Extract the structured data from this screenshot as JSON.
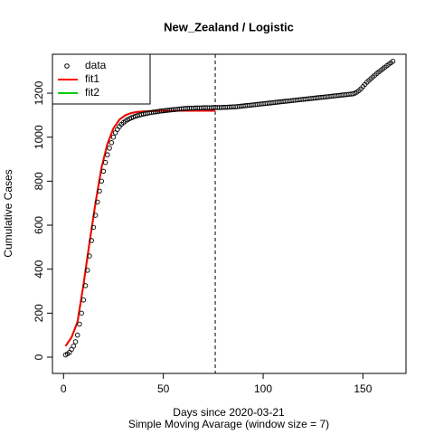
{
  "chart_data": {
    "type": "scatter",
    "title": "New_Zealand / Logistic",
    "xlabel": "Days since 2020-03-21",
    "subtitle": "Simple Moving Avarage (window size = 7)",
    "ylabel": "Cumulative Cases",
    "xlim": [
      -5.56,
      171.56
    ],
    "ylim": [
      -74,
      1377
    ],
    "xticks": [
      0,
      50,
      100,
      150
    ],
    "yticks": [
      0,
      200,
      400,
      600,
      800,
      1000,
      1200
    ],
    "vline": 76,
    "legend": "top-left",
    "series": [
      {
        "name": "data",
        "type": "scatter",
        "color": "#000000",
        "x": [
          1,
          2,
          3,
          4,
          5,
          6,
          7,
          8,
          9,
          10,
          11,
          12,
          13,
          14,
          15,
          16,
          17,
          18,
          19,
          20,
          21,
          22,
          23,
          24,
          25,
          26,
          27,
          28,
          29,
          30,
          31,
          32,
          33,
          34,
          35,
          36,
          37,
          38,
          39,
          40,
          41,
          42,
          43,
          44,
          45,
          46,
          47,
          48,
          49,
          50,
          51,
          52,
          53,
          54,
          55,
          56,
          57,
          58,
          59,
          60,
          61,
          62,
          63,
          64,
          65,
          66,
          67,
          68,
          69,
          70,
          71,
          72,
          73,
          74,
          75,
          76,
          77,
          78,
          79,
          80,
          81,
          82,
          83,
          84,
          85,
          86,
          87,
          88,
          89,
          90,
          91,
          92,
          93,
          94,
          95,
          96,
          97,
          98,
          99,
          100,
          101,
          102,
          103,
          104,
          105,
          106,
          107,
          108,
          109,
          110,
          111,
          112,
          113,
          114,
          115,
          116,
          117,
          118,
          119,
          120,
          121,
          122,
          123,
          124,
          125,
          126,
          127,
          128,
          129,
          130,
          131,
          132,
          133,
          134,
          135,
          136,
          137,
          138,
          139,
          140,
          141,
          142,
          143,
          144,
          145,
          146,
          147,
          148,
          149,
          150,
          151,
          152,
          153,
          154,
          155,
          156,
          157,
          158,
          159,
          160,
          161,
          162,
          163,
          164,
          165
        ],
        "values": [
          10,
          15,
          22,
          35,
          50,
          70,
          100,
          150,
          200,
          260,
          325,
          395,
          460,
          530,
          590,
          645,
          705,
          755,
          800,
          845,
          885,
          920,
          950,
          975,
          1000,
          1020,
          1035,
          1048,
          1058,
          1066,
          1073,
          1079,
          1084,
          1088,
          1092,
          1095,
          1098,
          1101,
          1103,
          1105,
          1107,
          1109,
          1111,
          1112,
          1114,
          1115,
          1116,
          1118,
          1119,
          1120,
          1121,
          1122,
          1123,
          1124,
          1125,
          1126,
          1127,
          1128,
          1129,
          1130,
          1131,
          1131,
          1132,
          1132,
          1132,
          1133,
          1133,
          1133,
          1133,
          1134,
          1134,
          1134,
          1134,
          1134,
          1135,
          1135,
          1135,
          1135,
          1135,
          1136,
          1136,
          1136,
          1137,
          1137,
          1138,
          1138,
          1139,
          1140,
          1141,
          1142,
          1143,
          1144,
          1145,
          1146,
          1147,
          1148,
          1149,
          1150,
          1151,
          1152,
          1153,
          1154,
          1155,
          1156,
          1157,
          1158,
          1159,
          1160,
          1161,
          1162,
          1163,
          1164,
          1165,
          1166,
          1167,
          1168,
          1169,
          1170,
          1171,
          1172,
          1173,
          1174,
          1175,
          1176,
          1177,
          1178,
          1179,
          1180,
          1181,
          1182,
          1183,
          1184,
          1185,
          1186,
          1187,
          1188,
          1189,
          1190,
          1191,
          1192,
          1193,
          1194,
          1195,
          1196,
          1197,
          1200,
          1205,
          1212,
          1220,
          1230,
          1240,
          1250,
          1258,
          1266,
          1274,
          1282,
          1290,
          1297,
          1304,
          1311,
          1318,
          1325,
          1332,
          1338,
          1345
        ]
      },
      {
        "name": "fit1",
        "type": "line",
        "color": "#ff0000",
        "x": [
          1,
          4,
          7,
          10,
          13,
          16,
          19,
          22,
          25,
          28,
          31,
          34,
          37,
          40,
          45,
          50,
          55,
          60,
          65,
          70,
          76
        ],
        "values": [
          50,
          90,
          160,
          330,
          520,
          700,
          860,
          970,
          1040,
          1080,
          1100,
          1110,
          1115,
          1117,
          1119,
          1120,
          1120,
          1120,
          1120,
          1120,
          1120
        ]
      },
      {
        "name": "fit2",
        "type": "line",
        "color": "#00cd00",
        "x": [
          1,
          4,
          7,
          10,
          13,
          16,
          19,
          22,
          25,
          28,
          31,
          34,
          37,
          40,
          45,
          50,
          55,
          60,
          65,
          70,
          76
        ],
        "values": [
          50,
          90,
          160,
          330,
          520,
          700,
          860,
          970,
          1040,
          1080,
          1100,
          1110,
          1115,
          1117,
          1119,
          1120,
          1120,
          1120,
          1120,
          1120,
          1120
        ]
      }
    ]
  }
}
